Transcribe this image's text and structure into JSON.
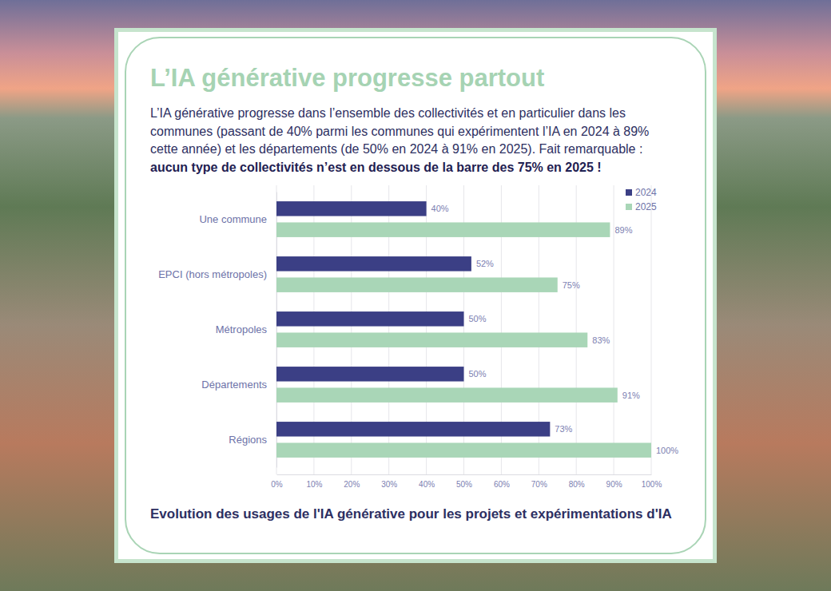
{
  "page": {
    "heading": "L’IA générative progresse partout",
    "text": "L’IA générative progresse dans l’ensemble des collectivités et en particulier dans les communes (passant de 40% parmi les communes qui expérimentent l’IA en 2024 à 89% cette année) et les départements (de 50% en 2024 à 91% en 2025). Fait remarquable :",
    "text_bold": "aucun type de collectivités n’est en dessous de la barre des 75% en 2025 !"
  },
  "chart_data": {
    "type": "bar",
    "orientation": "horizontal",
    "title": "Evolution des usages de l'IA générative pour les projets et expérimentations d'IA",
    "categories": [
      "Une commune",
      "EPCI (hors métropoles)",
      "Métropoles",
      "Départements",
      "Régions"
    ],
    "series": [
      {
        "name": "2024",
        "color": "#3b3f85",
        "values": [
          40,
          52,
          50,
          50,
          73
        ],
        "value_labels": [
          "40%",
          "52%",
          "50%",
          "50%",
          "73%"
        ]
      },
      {
        "name": "2025",
        "color": "#a9d6b7",
        "values": [
          89,
          75,
          83,
          91,
          100
        ],
        "value_labels": [
          "89%",
          "75%",
          "83%",
          "91%",
          "100%"
        ]
      }
    ],
    "xlim": [
      0,
      100
    ],
    "xticks": [
      {
        "value": 0,
        "label": "0%"
      },
      {
        "value": 10,
        "label": "10%"
      },
      {
        "value": 20,
        "label": "20%"
      },
      {
        "value": 30,
        "label": "30%"
      },
      {
        "value": 40,
        "label": "40%"
      },
      {
        "value": 50,
        "label": "50%"
      },
      {
        "value": 60,
        "label": "60%"
      },
      {
        "value": 70,
        "label": "70%"
      },
      {
        "value": 80,
        "label": "80%"
      },
      {
        "value": 90,
        "label": "90%"
      },
      {
        "value": 100,
        "label": "100%"
      }
    ],
    "grid": true,
    "legend": "upper right",
    "data_labels": true
  }
}
